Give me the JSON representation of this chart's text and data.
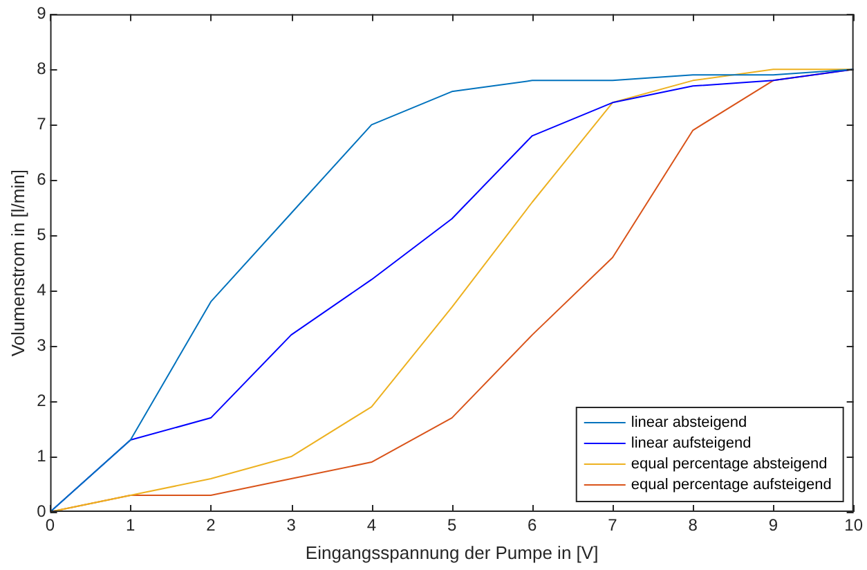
{
  "chart_data": {
    "type": "line",
    "xlabel": "Eingangsspannung der Pumpe in [V]",
    "ylabel": "Volumenstrom in [l/min]",
    "x": [
      0,
      1,
      2,
      3,
      4,
      5,
      6,
      7,
      8,
      9,
      10
    ],
    "series": [
      {
        "name": "linear absteigend",
        "color": "#0072bd",
        "values": [
          0,
          1.3,
          3.8,
          5.4,
          7.0,
          7.6,
          7.8,
          7.8,
          7.9,
          7.9,
          8.0
        ]
      },
      {
        "name": "linear aufsteigend",
        "color": "#0000ff",
        "values": [
          0,
          1.3,
          1.7,
          3.2,
          4.2,
          5.3,
          6.8,
          7.4,
          7.7,
          7.8,
          8.0
        ]
      },
      {
        "name": "equal percentage absteigend",
        "color": "#edb120",
        "values": [
          0,
          0.3,
          0.6,
          1.0,
          1.9,
          3.7,
          5.6,
          7.4,
          7.8,
          8.0,
          8.0
        ]
      },
      {
        "name": "equal percentage aufsteigend",
        "color": "#d95319",
        "values": [
          0,
          0.3,
          0.3,
          0.6,
          0.9,
          1.7,
          3.2,
          4.6,
          6.9,
          7.8,
          8.0
        ]
      }
    ],
    "xlim": [
      0,
      10
    ],
    "xticks": [
      0,
      1,
      2,
      3,
      4,
      5,
      6,
      7,
      8,
      9,
      10
    ],
    "ylim": [
      0,
      9
    ],
    "yticks": [
      0,
      1,
      2,
      3,
      4,
      5,
      6,
      7,
      8,
      9
    ],
    "grid": false,
    "legend": "bottom right",
    "marker": "none",
    "line_style": "solid"
  }
}
